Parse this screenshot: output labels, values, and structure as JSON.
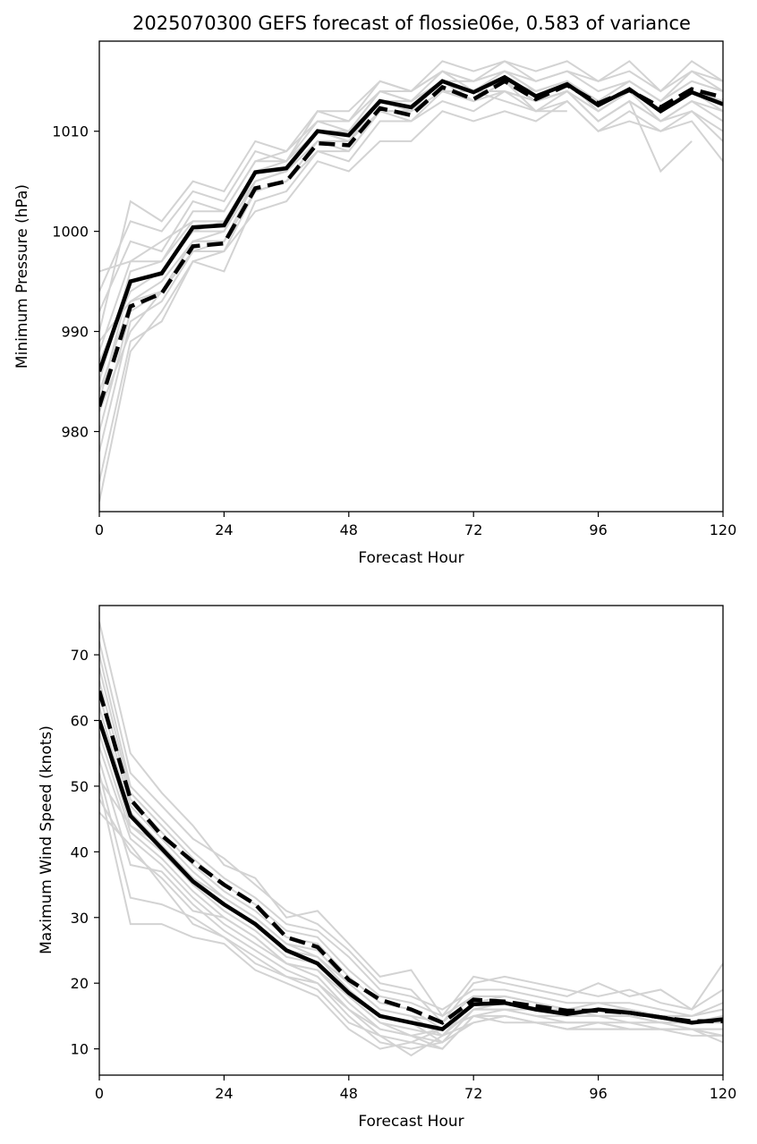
{
  "chart_data": [
    {
      "type": "line",
      "title": "2025070300 GEFS forecast of flossie06e, 0.583 of variance",
      "xlabel": "Forecast Hour",
      "ylabel": "Minimum Pressure (hPa)",
      "xlim": [
        0,
        120
      ],
      "ylim": [
        972,
        1019
      ],
      "xticks": [
        0,
        24,
        48,
        72,
        96,
        120
      ],
      "yticks": [
        980,
        990,
        1000,
        1010
      ],
      "x": [
        0,
        6,
        12,
        18,
        24,
        30,
        36,
        42,
        48,
        54,
        60,
        66,
        72,
        78,
        84,
        90,
        96,
        102,
        108,
        114,
        120
      ],
      "series": [
        {
          "style": "solid",
          "color": "#000000",
          "values": [
            986,
            995,
            995.8,
            1000.4,
            1000.6,
            1005.9,
            1006.3,
            1010,
            1009.6,
            1013,
            1012.4,
            1015,
            1013.9,
            1015.4,
            1013.5,
            1014.7,
            1012.6,
            1014.2,
            1012,
            1013.9,
            1012.7
          ]
        },
        {
          "style": "dashed",
          "color": "#000000",
          "values": [
            982.5,
            992.5,
            993.8,
            998.5,
            998.8,
            1004.3,
            1005,
            1008.8,
            1008.6,
            1012.3,
            1011.6,
            1014.4,
            1013.2,
            1015,
            1013.2,
            1014.6,
            1012.8,
            1014.1,
            1012.4,
            1014.2,
            1013.4
          ]
        }
      ],
      "members": [
        [
          990,
          1003,
          1001,
          1005,
          1004,
          1009,
          1008,
          1012,
          1012,
          1015,
          1014,
          1017,
          1016,
          1017,
          1016,
          1017,
          1015,
          1017,
          1014,
          1017,
          1015
        ],
        [
          994,
          1001,
          1000,
          1004,
          1003,
          1008,
          1007,
          1011,
          1011,
          1014,
          1014,
          1016,
          1015,
          1016,
          1015,
          1016,
          1014,
          1015,
          1013,
          1016,
          1014
        ],
        [
          992,
          999,
          998,
          1003,
          1002,
          1007,
          1008,
          1011,
          1010,
          1014,
          1013,
          1016,
          1014,
          1016,
          1014,
          1015,
          1013,
          1015,
          1013,
          1015,
          1014
        ],
        [
          988,
          997,
          997,
          1002,
          1002,
          1007,
          1007,
          1010,
          1010,
          1013,
          1013,
          1015,
          1014,
          1015,
          1014,
          1015,
          1013,
          1014,
          1012,
          1014,
          1013
        ],
        [
          985,
          996,
          997,
          1001,
          1001,
          1006,
          1006,
          1010,
          1010,
          1013,
          1012,
          1015,
          1014,
          1015,
          1013,
          1014,
          1012,
          1014,
          1012,
          1014,
          1012
        ],
        [
          983,
          995,
          996,
          1000,
          1001,
          1005,
          1006,
          1009,
          1009,
          1013,
          1012,
          1014,
          1014,
          1014,
          1013,
          1014,
          1012,
          1014,
          1011,
          1013,
          1012
        ],
        [
          980,
          992,
          994,
          999,
          999,
          1004,
          1005,
          1009,
          1009,
          1012,
          1012,
          1014,
          1013,
          1014,
          1013,
          1014,
          1011,
          1013,
          1011,
          1013,
          1011
        ],
        [
          978,
          991,
          993,
          998,
          998,
          1004,
          1005,
          1008,
          1008,
          1012,
          1011,
          1014,
          1013,
          1015,
          1012,
          1014,
          1011,
          1013,
          1011,
          1012,
          1010
        ],
        [
          973,
          988,
          992,
          997,
          996,
          1003,
          1004,
          1008,
          1007,
          1011,
          1011,
          1013,
          1012,
          1014,
          1012,
          1013,
          1010,
          1012,
          1010,
          1012,
          1009
        ],
        [
          975,
          989,
          991,
          997,
          998,
          1002,
          1003,
          1007,
          1006,
          1009,
          1009,
          1012,
          1011,
          1012,
          1011,
          1013,
          1010,
          1011,
          1010,
          1011,
          1007
        ],
        [
          996,
          997,
          999,
          1001,
          1001,
          1006,
          1007,
          1012,
          1011,
          1015,
          1014,
          1016,
          1015,
          1017,
          1015,
          1016,
          1015,
          1016,
          1014,
          1016,
          1015
        ],
        [
          987,
          994,
          996,
          1000,
          1000,
          1006,
          1006,
          1010,
          1010,
          1014,
          1013,
          1015,
          1015,
          1016,
          1014,
          1015,
          1013,
          1015,
          1013,
          1015,
          1014
        ],
        [
          984,
          993,
          995,
          999,
          1000,
          1005,
          1006,
          1010,
          1009,
          1013,
          1012,
          1015,
          1013,
          1015,
          1013,
          1015,
          1012,
          1014,
          1012,
          1014,
          1013
        ],
        [
          982,
          990,
          994,
          998,
          999,
          1004,
          1005,
          1009,
          1008,
          1012,
          1012,
          1014,
          1014,
          1013,
          1012,
          1012,
          null,
          null,
          null,
          null,
          null
        ],
        [
          989,
          993,
          994,
          999,
          999,
          1005,
          1006,
          1010,
          1009,
          1013,
          1013,
          1015,
          1013,
          1015,
          1013,
          1014,
          1011,
          1013,
          1006,
          1009,
          null
        ]
      ]
    },
    {
      "type": "line",
      "title": "",
      "xlabel": "Forecast Hour",
      "ylabel": "Maximum Wind Speed (knots)",
      "xlim": [
        0,
        120
      ],
      "ylim": [
        6,
        77.5
      ],
      "xticks": [
        0,
        24,
        48,
        72,
        96,
        120
      ],
      "yticks": [
        10,
        20,
        30,
        40,
        50,
        60,
        70
      ],
      "x": [
        0,
        6,
        12,
        18,
        24,
        30,
        36,
        42,
        48,
        54,
        60,
        66,
        72,
        78,
        84,
        90,
        96,
        102,
        108,
        114,
        120
      ],
      "series": [
        {
          "style": "solid",
          "color": "#000000",
          "values": [
            60,
            45.5,
            40.5,
            35.5,
            32,
            29,
            25,
            23,
            18.5,
            15,
            14,
            13,
            16.8,
            17,
            16,
            15.3,
            16,
            15.5,
            14.8,
            14,
            14.5
          ]
        },
        {
          "style": "dashed",
          "color": "#000000",
          "values": [
            64.5,
            48,
            42.5,
            38.5,
            35,
            32,
            27,
            25.5,
            20.5,
            17.5,
            16,
            14,
            17.5,
            17.2,
            16.5,
            15.8,
            15.8,
            15.5,
            14.8,
            14.2,
            14.2
          ]
        }
      ],
      "members": [
        [
          75,
          55,
          49,
          44,
          38,
          36,
          30,
          31,
          26,
          21,
          22,
          15,
          21,
          20,
          19,
          18,
          20,
          18,
          19,
          16,
          23
        ],
        [
          72,
          52,
          47,
          42,
          39,
          35,
          31,
          29,
          25,
          20,
          19,
          14,
          20,
          21,
          20,
          19,
          18,
          19,
          17,
          16,
          19
        ],
        [
          70,
          50,
          45,
          40,
          36,
          33,
          29,
          28,
          24,
          19,
          18,
          16,
          19,
          19,
          18,
          17,
          17,
          17,
          16,
          15,
          17
        ],
        [
          68,
          49,
          44,
          39,
          35,
          32,
          28,
          27,
          22,
          18,
          17,
          15,
          18,
          18,
          17,
          16,
          16,
          16,
          15,
          15,
          16
        ],
        [
          66,
          48,
          43,
          38,
          34,
          31,
          27,
          26,
          21,
          17,
          16,
          13,
          17,
          18,
          17,
          16,
          16,
          16,
          15,
          14,
          15
        ],
        [
          64,
          47,
          42,
          37,
          33,
          30,
          26,
          25,
          20,
          16,
          15,
          12,
          17,
          17,
          16,
          16,
          15,
          15,
          15,
          14,
          14
        ],
        [
          62,
          46,
          41,
          36,
          32,
          29,
          25,
          24,
          19,
          15,
          14,
          11,
          16,
          16,
          16,
          15,
          15,
          15,
          14,
          14,
          14
        ],
        [
          60,
          44,
          40,
          35,
          31,
          28,
          24,
          23,
          18,
          14,
          13,
          12,
          16,
          16,
          15,
          15,
          15,
          14,
          14,
          13,
          13
        ],
        [
          58,
          43,
          39,
          34,
          30,
          27,
          23,
          22,
          17,
          13,
          12,
          10,
          15,
          16,
          15,
          14,
          14,
          14,
          13,
          13,
          13
        ],
        [
          56,
          42,
          38,
          33,
          29,
          26,
          23,
          21,
          16,
          12,
          11,
          10,
          15,
          15,
          14,
          14,
          14,
          13,
          13,
          13,
          12
        ],
        [
          54,
          38,
          37,
          32,
          28,
          25,
          22,
          20,
          15,
          11,
          10,
          11,
          14,
          15,
          14,
          13,
          14,
          13,
          13,
          13,
          12
        ],
        [
          52,
          33,
          32,
          30,
          27,
          24,
          21,
          19,
          14,
          12,
          9,
          12,
          14,
          15,
          14,
          13,
          13,
          13,
          13,
          13,
          11
        ],
        [
          50,
          29,
          29,
          27,
          26,
          22,
          20,
          18,
          13,
          10,
          11,
          13,
          15,
          14,
          14,
          13,
          13,
          13,
          13,
          12,
          12
        ],
        [
          48,
          40,
          36,
          31,
          30,
          27,
          23,
          22,
          18,
          14,
          12,
          11,
          16,
          17,
          16,
          15,
          15,
          15,
          14,
          14,
          14
        ],
        [
          46,
          41,
          35,
          29,
          27,
          23,
          21,
          20,
          16,
          13,
          12,
          13,
          17,
          17,
          16,
          15,
          16,
          15,
          15,
          14,
          15
        ],
        [
          51,
          44,
          41,
          36,
          33,
          30,
          26,
          24,
          20,
          16,
          15,
          14,
          18,
          18,
          17,
          16,
          17,
          16,
          15,
          15,
          16
        ]
      ]
    }
  ]
}
